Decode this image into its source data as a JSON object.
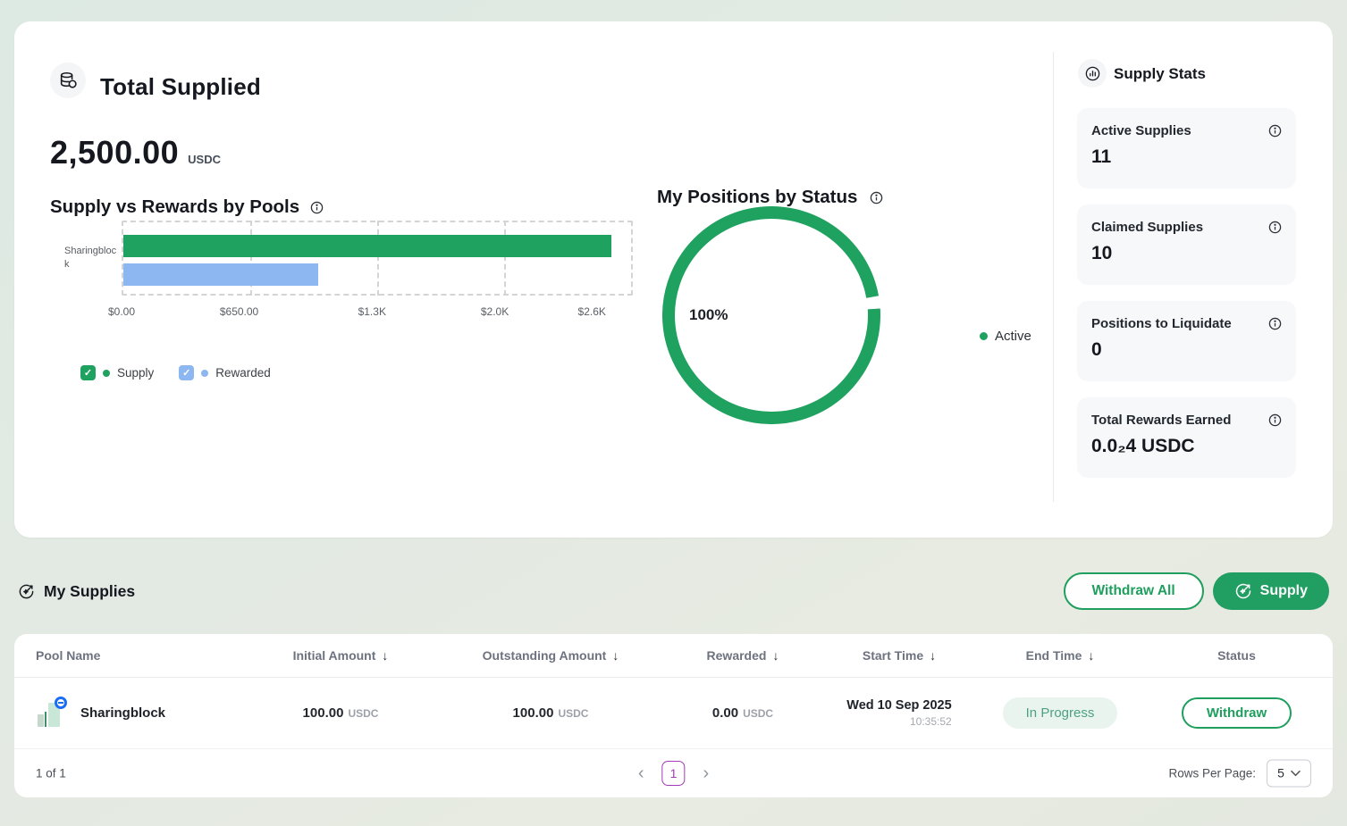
{
  "overview": {
    "title": "Total Supplied",
    "amount": "2,500.00",
    "currency": "USDC"
  },
  "bar_chart": {
    "title": "Supply vs Rewards by Pools",
    "category": "Sharingblock",
    "ticks": [
      "$0.00",
      "$650.00",
      "$1.3K",
      "$2.0K",
      "$2.6K"
    ],
    "legend": [
      {
        "label": "Supply",
        "color": "#1FA15F"
      },
      {
        "label": "Rewarded",
        "color": "#8DB7F0"
      }
    ]
  },
  "donut_chart": {
    "title": "My Positions by Status",
    "center_label": "100%",
    "legend": [
      {
        "label": "Active",
        "color": "#1FA15F"
      }
    ]
  },
  "chart_data": [
    {
      "type": "bar",
      "orientation": "horizontal",
      "title": "Supply vs Rewards by Pools",
      "categories": [
        "Sharingblock"
      ],
      "series": [
        {
          "name": "Supply",
          "values": [
            2500
          ],
          "color": "#1FA15F"
        },
        {
          "name": "Rewarded",
          "values": [
            1000
          ],
          "color": "#8DB7F0"
        }
      ],
      "xlim": [
        0,
        2600
      ],
      "tick_labels": [
        "$0.00",
        "$650.00",
        "$1.3K",
        "$2.0K",
        "$2.6K"
      ],
      "grid": "dashed-vertical",
      "legend_position": "bottom"
    },
    {
      "type": "pie",
      "title": "My Positions by Status",
      "labels": [
        "Active"
      ],
      "values": [
        100
      ],
      "unit": "%",
      "colors": [
        "#1FA15F"
      ],
      "center_label": "100%",
      "legend_position": "right"
    }
  ],
  "supply_stats": {
    "title": "Supply Stats",
    "cards": [
      {
        "label": "Active Supplies",
        "value": "11"
      },
      {
        "label": "Claimed Supplies",
        "value": "10"
      },
      {
        "label": "Positions to Liquidate",
        "value": "0"
      },
      {
        "label": "Total Rewards Earned",
        "value": "0.0₂4 USDC"
      }
    ]
  },
  "my_supplies": {
    "title": "My Supplies",
    "withdraw_all_label": "Withdraw All",
    "supply_label": "Supply"
  },
  "table": {
    "headers": [
      "Pool Name",
      "Initial Amount",
      "Outstanding Amount",
      "Rewarded",
      "Start Time",
      "End Time",
      "Status"
    ],
    "row": {
      "pool_name": "Sharingblock",
      "initial_amount": "100.00",
      "initial_currency": "USDC",
      "outstanding_amount": "100.00",
      "outstanding_currency": "USDC",
      "rewarded_amount": "0.00",
      "rewarded_currency": "USDC",
      "start_date": "Wed 10 Sep 2025",
      "start_time": "10:35:52",
      "end_time_badge": "In Progress",
      "action_label": "Withdraw"
    },
    "footer": {
      "page_info": "1 of 1",
      "current_page": "1",
      "rows_per_page_label": "Rows Per Page:",
      "rows_per_page_value": "5"
    }
  },
  "colors": {
    "primary_green": "#1FA15F",
    "rewarded_blue": "#8DB7F0",
    "badge_bg": "#E9F4EE",
    "badge_text": "#4DA183",
    "pagination_purple": "#A43AB8"
  }
}
